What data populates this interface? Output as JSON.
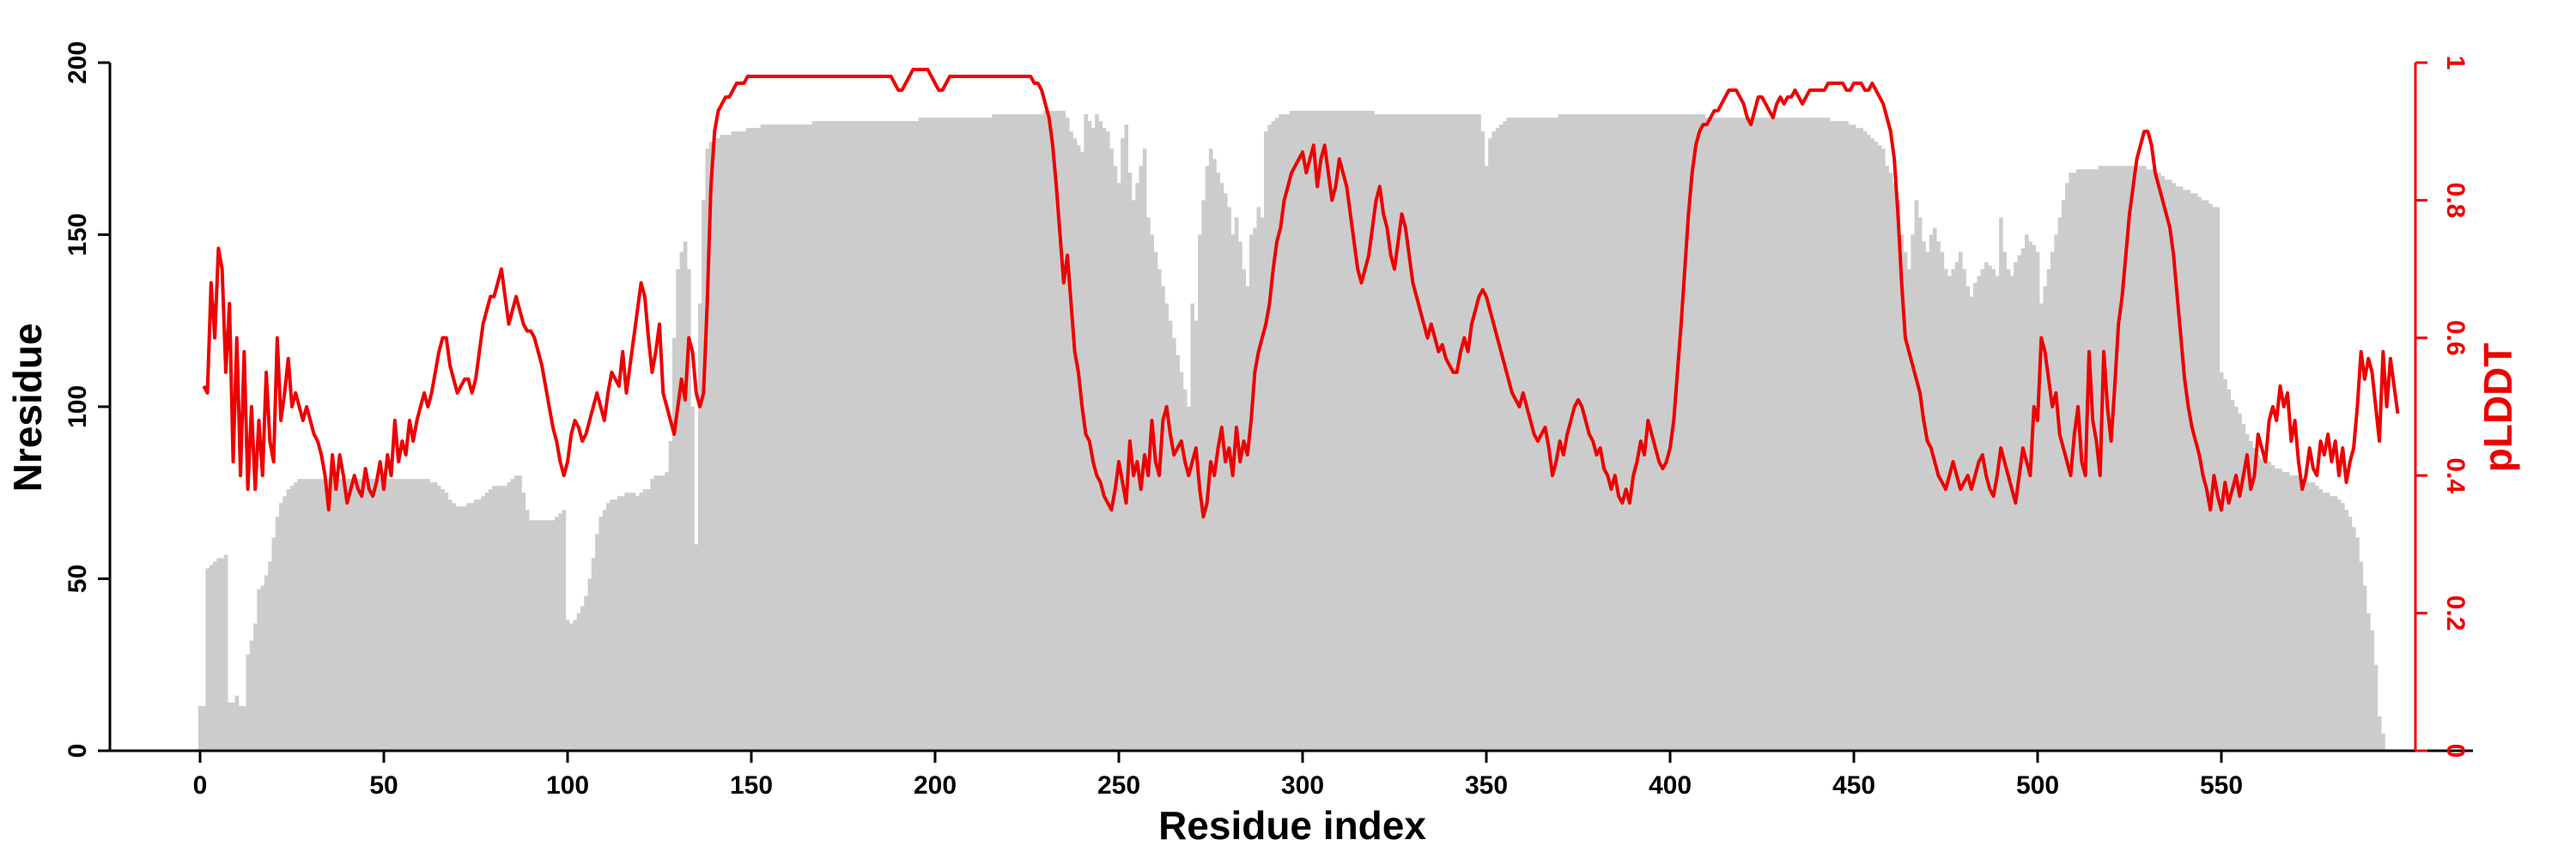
{
  "chart_data": {
    "type": "bar",
    "xlabel": "Residue index",
    "ylabel": "Nresidue",
    "y2label": "pLDDT",
    "xlim": [
      -25,
      620
    ],
    "xticks": [
      0,
      50,
      100,
      150,
      200,
      250,
      300,
      350,
      400,
      450,
      500,
      550
    ],
    "xtick_labels": [
      "0",
      "50",
      "100",
      "150",
      "200",
      "250",
      "300",
      "350",
      "400",
      "450",
      "500",
      "550"
    ],
    "ylim": [
      0,
      200
    ],
    "yticks": [
      0,
      50,
      100,
      150,
      200
    ],
    "ytick_labels": [
      "0",
      "50",
      "100",
      "150",
      "200"
    ],
    "y2lim": [
      0,
      1
    ],
    "y2ticks": [
      0,
      0.2,
      0.4,
      0.6,
      0.8,
      1
    ],
    "y2tick_labels": [
      "0",
      "0.2",
      "0.4",
      "0.6",
      "0.8",
      "1"
    ],
    "colors": {
      "bars": "#cccccc",
      "line": "#ee0000",
      "axis": "#000000",
      "right_axis": "#ee0000"
    },
    "series": [
      {
        "type": "bar",
        "axis": "left",
        "x_start": 0,
        "x_step": 1,
        "values": [
          13,
          13,
          53,
          54,
          55,
          56,
          56,
          57,
          14,
          14,
          16,
          13,
          13,
          28,
          32,
          37,
          47,
          48,
          51,
          55,
          62,
          68,
          72,
          74,
          76,
          77,
          78,
          79,
          79,
          79,
          79,
          79,
          79,
          79,
          79,
          79,
          79,
          79,
          79,
          79,
          79,
          79,
          79,
          79,
          79,
          79,
          79,
          79,
          79,
          79,
          79,
          79,
          79,
          79,
          79,
          79,
          79,
          79,
          79,
          79,
          79,
          79,
          79,
          78,
          78,
          77,
          76,
          75,
          73,
          72,
          71,
          71,
          71,
          72,
          72,
          73,
          73,
          74,
          75,
          76,
          77,
          77,
          77,
          77,
          78,
          79,
          80,
          80,
          75,
          70,
          67,
          67,
          67,
          67,
          67,
          67,
          67,
          68,
          69,
          70,
          38,
          37,
          38,
          40,
          42,
          45,
          50,
          56,
          63,
          68,
          70,
          72,
          73,
          73,
          74,
          74,
          75,
          75,
          75,
          74,
          75,
          76,
          76,
          79,
          80,
          80,
          80,
          81,
          90,
          120,
          140,
          145,
          148,
          140,
          100,
          60,
          130,
          160,
          175,
          177,
          178,
          178,
          179,
          179,
          179,
          180,
          180,
          180,
          180,
          181,
          181,
          181,
          181,
          182,
          182,
          182,
          182,
          182,
          182,
          182,
          182,
          182,
          182,
          182,
          182,
          182,
          182,
          183,
          183,
          183,
          183,
          183,
          183,
          183,
          183,
          183,
          183,
          183,
          183,
          183,
          183,
          183,
          183,
          183,
          183,
          183,
          183,
          183,
          183,
          183,
          183,
          183,
          183,
          183,
          183,
          183,
          184,
          184,
          184,
          184,
          184,
          184,
          184,
          184,
          184,
          184,
          184,
          184,
          184,
          184,
          184,
          184,
          184,
          184,
          184,
          184,
          185,
          185,
          185,
          185,
          185,
          185,
          185,
          185,
          185,
          185,
          185,
          185,
          185,
          185,
          186,
          186,
          186,
          186,
          186,
          186,
          184,
          180,
          178,
          176,
          174,
          185,
          183,
          181,
          185,
          183,
          181,
          180,
          175,
          170,
          165,
          178,
          182,
          168,
          160,
          165,
          170,
          175,
          155,
          150,
          145,
          140,
          135,
          130,
          125,
          120,
          115,
          110,
          105,
          100,
          130,
          125,
          150,
          160,
          170,
          175,
          172,
          168,
          165,
          162,
          158,
          150,
          155,
          148,
          140,
          135,
          150,
          152,
          158,
          155,
          180,
          182,
          183,
          184,
          185,
          185,
          185,
          186,
          186,
          186,
          186,
          186,
          186,
          186,
          186,
          186,
          186,
          186,
          186,
          186,
          186,
          186,
          186,
          186,
          186,
          186,
          186,
          186,
          186,
          186,
          185,
          185,
          185,
          185,
          185,
          185,
          185,
          185,
          185,
          185,
          185,
          185,
          185,
          185,
          185,
          185,
          185,
          185,
          185,
          185,
          185,
          185,
          185,
          185,
          185,
          185,
          185,
          185,
          185,
          180,
          170,
          178,
          180,
          181,
          182,
          183,
          184,
          184,
          184,
          184,
          184,
          184,
          184,
          184,
          184,
          184,
          184,
          184,
          184,
          184,
          185,
          185,
          185,
          185,
          185,
          185,
          185,
          185,
          185,
          185,
          185,
          185,
          185,
          185,
          185,
          185,
          185,
          185,
          185,
          185,
          185,
          185,
          185,
          185,
          185,
          185,
          185,
          185,
          185,
          185,
          185,
          185,
          185,
          185,
          185,
          185,
          185,
          185,
          185,
          185,
          184,
          184,
          184,
          184,
          184,
          184,
          184,
          184,
          184,
          184,
          184,
          184,
          184,
          184,
          184,
          184,
          184,
          184,
          184,
          184,
          184,
          184,
          184,
          184,
          184,
          184,
          184,
          184,
          184,
          184,
          184,
          184,
          184,
          184,
          183,
          183,
          183,
          183,
          183,
          182,
          182,
          181,
          181,
          180,
          179,
          178,
          177,
          176,
          175,
          170,
          168,
          165,
          160,
          150,
          145,
          140,
          150,
          160,
          155,
          148,
          145,
          150,
          152,
          148,
          145,
          140,
          138,
          140,
          142,
          145,
          140,
          135,
          132,
          136,
          138,
          140,
          142,
          141,
          140,
          138,
          155,
          145,
          140,
          138,
          142,
          144,
          146,
          150,
          148,
          147,
          145,
          130,
          135,
          140,
          145,
          150,
          155,
          160,
          165,
          168,
          168,
          169,
          169,
          169,
          169,
          169,
          169,
          170,
          170,
          170,
          170,
          170,
          170,
          170,
          170,
          170,
          170,
          170,
          170,
          170,
          169,
          169,
          168,
          168,
          167,
          166,
          166,
          165,
          164,
          164,
          163,
          163,
          162,
          162,
          161,
          160,
          160,
          159,
          158,
          158,
          110,
          108,
          105,
          102,
          100,
          98,
          95,
          92,
          90,
          88,
          86,
          85,
          84,
          84,
          83,
          82,
          82,
          81,
          81,
          80,
          80,
          80,
          79,
          79,
          78,
          78,
          77,
          76,
          75,
          75,
          74,
          74,
          73,
          72,
          70,
          68,
          65,
          62,
          55,
          48,
          40,
          35,
          25,
          10,
          5
        ]
      },
      {
        "type": "line",
        "axis": "right",
        "x_start": 1,
        "x_step": 1,
        "values": [
          0.53,
          0.52,
          0.68,
          0.6,
          0.73,
          0.7,
          0.55,
          0.65,
          0.42,
          0.6,
          0.4,
          0.58,
          0.38,
          0.5,
          0.38,
          0.48,
          0.4,
          0.55,
          0.45,
          0.42,
          0.6,
          0.48,
          0.52,
          0.57,
          0.5,
          0.52,
          0.5,
          0.48,
          0.5,
          0.48,
          0.46,
          0.45,
          0.43,
          0.4,
          0.35,
          0.43,
          0.38,
          0.43,
          0.4,
          0.36,
          0.38,
          0.4,
          0.38,
          0.37,
          0.41,
          0.38,
          0.37,
          0.39,
          0.42,
          0.38,
          0.43,
          0.4,
          0.48,
          0.42,
          0.45,
          0.43,
          0.48,
          0.45,
          0.48,
          0.5,
          0.52,
          0.5,
          0.52,
          0.55,
          0.58,
          0.6,
          0.6,
          0.56,
          0.54,
          0.52,
          0.53,
          0.54,
          0.54,
          0.52,
          0.54,
          0.58,
          0.62,
          0.64,
          0.66,
          0.66,
          0.68,
          0.7,
          0.66,
          0.62,
          0.64,
          0.66,
          0.64,
          0.62,
          0.61,
          0.61,
          0.6,
          0.58,
          0.56,
          0.53,
          0.5,
          0.47,
          0.45,
          0.42,
          0.4,
          0.42,
          0.46,
          0.48,
          0.47,
          0.45,
          0.46,
          0.48,
          0.5,
          0.52,
          0.5,
          0.48,
          0.52,
          0.55,
          0.54,
          0.53,
          0.58,
          0.52,
          0.56,
          0.6,
          0.64,
          0.68,
          0.66,
          0.6,
          0.55,
          0.58,
          0.62,
          0.52,
          0.5,
          0.48,
          0.46,
          0.5,
          0.54,
          0.51,
          0.6,
          0.58,
          0.52,
          0.5,
          0.52,
          0.65,
          0.82,
          0.9,
          0.93,
          0.94,
          0.95,
          0.95,
          0.96,
          0.97,
          0.97,
          0.97,
          0.98,
          0.98,
          0.98,
          0.98,
          0.98,
          0.98,
          0.98,
          0.98,
          0.98,
          0.98,
          0.98,
          0.98,
          0.98,
          0.98,
          0.98,
          0.98,
          0.98,
          0.98,
          0.98,
          0.98,
          0.98,
          0.98,
          0.98,
          0.98,
          0.98,
          0.98,
          0.98,
          0.98,
          0.98,
          0.98,
          0.98,
          0.98,
          0.98,
          0.98,
          0.98,
          0.98,
          0.98,
          0.98,
          0.98,
          0.98,
          0.97,
          0.96,
          0.96,
          0.97,
          0.98,
          0.99,
          0.99,
          0.99,
          0.99,
          0.99,
          0.98,
          0.97,
          0.96,
          0.96,
          0.97,
          0.98,
          0.98,
          0.98,
          0.98,
          0.98,
          0.98,
          0.98,
          0.98,
          0.98,
          0.98,
          0.98,
          0.98,
          0.98,
          0.98,
          0.98,
          0.98,
          0.98,
          0.98,
          0.98,
          0.98,
          0.98,
          0.98,
          0.98,
          0.97,
          0.97,
          0.96,
          0.94,
          0.92,
          0.88,
          0.82,
          0.75,
          0.68,
          0.72,
          0.65,
          0.58,
          0.55,
          0.5,
          0.46,
          0.45,
          0.42,
          0.4,
          0.39,
          0.37,
          0.36,
          0.35,
          0.38,
          0.42,
          0.39,
          0.36,
          0.45,
          0.4,
          0.42,
          0.38,
          0.43,
          0.4,
          0.48,
          0.42,
          0.4,
          0.48,
          0.5,
          0.46,
          0.43,
          0.44,
          0.45,
          0.42,
          0.4,
          0.42,
          0.44,
          0.38,
          0.34,
          0.36,
          0.42,
          0.4,
          0.44,
          0.47,
          0.42,
          0.44,
          0.4,
          0.47,
          0.42,
          0.45,
          0.43,
          0.48,
          0.55,
          0.58,
          0.6,
          0.62,
          0.65,
          0.7,
          0.74,
          0.76,
          0.8,
          0.82,
          0.84,
          0.85,
          0.86,
          0.87,
          0.84,
          0.86,
          0.88,
          0.82,
          0.86,
          0.88,
          0.84,
          0.8,
          0.82,
          0.86,
          0.84,
          0.82,
          0.78,
          0.74,
          0.7,
          0.68,
          0.7,
          0.72,
          0.76,
          0.8,
          0.82,
          0.78,
          0.76,
          0.72,
          0.7,
          0.74,
          0.78,
          0.76,
          0.72,
          0.68,
          0.66,
          0.64,
          0.62,
          0.6,
          0.62,
          0.6,
          0.58,
          0.59,
          0.57,
          0.56,
          0.55,
          0.55,
          0.58,
          0.6,
          0.58,
          0.62,
          0.64,
          0.66,
          0.67,
          0.66,
          0.64,
          0.62,
          0.6,
          0.58,
          0.56,
          0.54,
          0.52,
          0.51,
          0.5,
          0.52,
          0.5,
          0.48,
          0.46,
          0.45,
          0.46,
          0.47,
          0.44,
          0.4,
          0.42,
          0.45,
          0.43,
          0.46,
          0.48,
          0.5,
          0.51,
          0.5,
          0.48,
          0.46,
          0.45,
          0.43,
          0.44,
          0.41,
          0.4,
          0.38,
          0.4,
          0.37,
          0.36,
          0.38,
          0.36,
          0.4,
          0.42,
          0.45,
          0.43,
          0.48,
          0.46,
          0.44,
          0.42,
          0.41,
          0.42,
          0.44,
          0.48,
          0.55,
          0.62,
          0.7,
          0.78,
          0.84,
          0.88,
          0.9,
          0.91,
          0.91,
          0.92,
          0.93,
          0.93,
          0.94,
          0.95,
          0.96,
          0.96,
          0.96,
          0.95,
          0.94,
          0.92,
          0.91,
          0.93,
          0.95,
          0.95,
          0.94,
          0.93,
          0.92,
          0.94,
          0.95,
          0.94,
          0.95,
          0.95,
          0.96,
          0.95,
          0.94,
          0.95,
          0.96,
          0.96,
          0.96,
          0.96,
          0.96,
          0.97,
          0.97,
          0.97,
          0.97,
          0.97,
          0.96,
          0.96,
          0.97,
          0.97,
          0.97,
          0.96,
          0.96,
          0.97,
          0.96,
          0.95,
          0.94,
          0.92,
          0.9,
          0.86,
          0.78,
          0.68,
          0.6,
          0.58,
          0.56,
          0.54,
          0.52,
          0.48,
          0.45,
          0.44,
          0.42,
          0.4,
          0.39,
          0.38,
          0.4,
          0.42,
          0.4,
          0.38,
          0.39,
          0.4,
          0.38,
          0.4,
          0.42,
          0.43,
          0.4,
          0.38,
          0.37,
          0.4,
          0.44,
          0.42,
          0.4,
          0.38,
          0.36,
          0.4,
          0.44,
          0.42,
          0.4,
          0.5,
          0.48,
          0.6,
          0.58,
          0.54,
          0.5,
          0.52,
          0.46,
          0.44,
          0.42,
          0.4,
          0.46,
          0.5,
          0.42,
          0.4,
          0.58,
          0.48,
          0.45,
          0.4,
          0.58,
          0.5,
          0.45,
          0.53,
          0.62,
          0.66,
          0.72,
          0.78,
          0.82,
          0.86,
          0.88,
          0.9,
          0.9,
          0.88,
          0.84,
          0.82,
          0.8,
          0.78,
          0.76,
          0.72,
          0.66,
          0.6,
          0.54,
          0.5,
          0.47,
          0.45,
          0.43,
          0.4,
          0.38,
          0.35,
          0.4,
          0.37,
          0.35,
          0.39,
          0.36,
          0.38,
          0.4,
          0.37,
          0.4,
          0.43,
          0.38,
          0.4,
          0.46,
          0.44,
          0.42,
          0.48,
          0.5,
          0.48,
          0.53,
          0.5,
          0.52,
          0.45,
          0.48,
          0.42,
          0.38,
          0.4,
          0.44,
          0.41,
          0.4,
          0.45,
          0.43,
          0.46,
          0.42,
          0.45,
          0.4,
          0.44,
          0.39,
          0.42,
          0.44,
          0.5,
          0.58,
          0.54,
          0.57,
          0.55,
          0.5,
          0.45,
          0.58,
          0.5,
          0.57,
          0.53,
          0.49
        ]
      }
    ]
  }
}
